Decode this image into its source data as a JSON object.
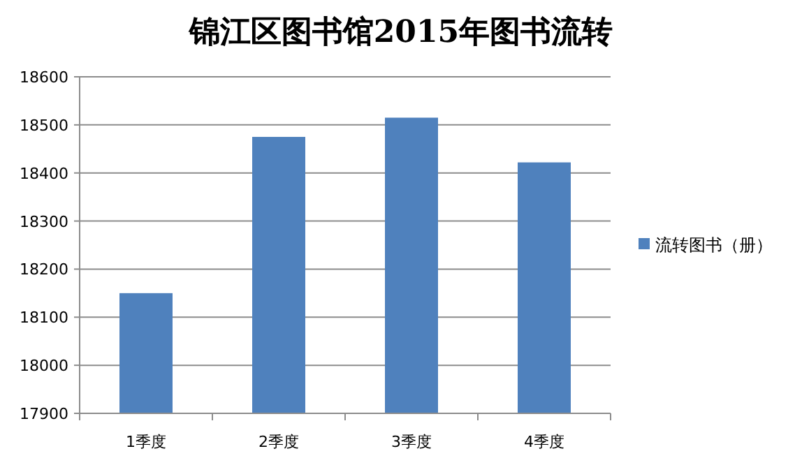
{
  "chart_data": {
    "type": "bar",
    "title": "锦江区图书馆2015年图书流转",
    "categories": [
      "1季度",
      "2季度",
      "3季度",
      "4季度"
    ],
    "series": [
      {
        "name": "流转图书（册）",
        "color": "#4f81bd",
        "values": [
          18150,
          18475,
          18515,
          18422
        ]
      }
    ],
    "ylim": [
      17900,
      18600
    ],
    "yticks": [
      17900,
      18000,
      18100,
      18200,
      18300,
      18400,
      18500,
      18600
    ],
    "grid": "y",
    "legend": "right"
  }
}
